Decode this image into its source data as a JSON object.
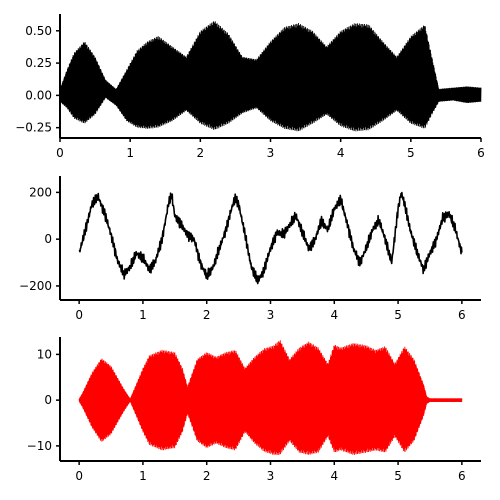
{
  "chart_data": [
    {
      "type": "line",
      "title": "",
      "xlabel": "",
      "ylabel": "",
      "xlim": [
        0,
        6
      ],
      "ylim": [
        -0.33,
        0.63
      ],
      "xticks": [
        0,
        1,
        2,
        3,
        4,
        5,
        6
      ],
      "yticks": [
        -0.25,
        0.0,
        0.25,
        0.5
      ],
      "ytick_labels": [
        "−0.25",
        "0.00",
        "0.25",
        "0.50"
      ],
      "grid": false,
      "color": "#000000",
      "series": [
        {
          "kind": "dense-oscillation-envelope",
          "x": [
            0.0,
            0.1,
            0.2,
            0.35,
            0.5,
            0.65,
            0.8,
            0.95,
            1.1,
            1.25,
            1.4,
            1.6,
            1.8,
            2.0,
            2.2,
            2.4,
            2.6,
            2.8,
            3.0,
            3.2,
            3.4,
            3.6,
            3.8,
            4.0,
            4.2,
            4.4,
            4.6,
            4.8,
            5.0,
            5.2,
            5.3,
            5.4,
            5.6,
            5.8,
            6.0
          ],
          "upper": [
            0.05,
            0.2,
            0.33,
            0.42,
            0.3,
            0.12,
            0.05,
            0.2,
            0.35,
            0.42,
            0.46,
            0.38,
            0.3,
            0.5,
            0.58,
            0.48,
            0.3,
            0.28,
            0.42,
            0.53,
            0.56,
            0.5,
            0.38,
            0.5,
            0.56,
            0.55,
            0.42,
            0.3,
            0.46,
            0.55,
            0.3,
            0.05,
            0.06,
            0.07,
            0.06
          ],
          "lower": [
            -0.05,
            -0.1,
            -0.18,
            -0.22,
            -0.15,
            -0.02,
            -0.08,
            -0.2,
            -0.25,
            -0.26,
            -0.25,
            -0.2,
            -0.12,
            -0.22,
            -0.27,
            -0.22,
            -0.14,
            -0.1,
            -0.2,
            -0.26,
            -0.28,
            -0.22,
            -0.15,
            -0.24,
            -0.28,
            -0.27,
            -0.2,
            -0.12,
            -0.22,
            -0.26,
            -0.15,
            -0.05,
            -0.04,
            -0.06,
            -0.05
          ]
        }
      ]
    },
    {
      "type": "line",
      "title": "",
      "xlabel": "",
      "ylabel": "",
      "xlim": [
        -0.3,
        6.3
      ],
      "ylim": [
        -260,
        270
      ],
      "xticks": [
        0,
        1,
        2,
        3,
        4,
        5,
        6
      ],
      "yticks": [
        -200,
        0,
        200
      ],
      "ytick_labels": [
        "−200",
        "0",
        "200"
      ],
      "grid": false,
      "color": "#000000",
      "series": [
        {
          "kind": "noisy-line",
          "x": [
            0.0,
            0.1,
            0.2,
            0.3,
            0.4,
            0.5,
            0.6,
            0.7,
            0.8,
            0.9,
            1.0,
            1.1,
            1.2,
            1.3,
            1.4,
            1.45,
            1.5,
            1.6,
            1.7,
            1.8,
            1.9,
            2.0,
            2.1,
            2.2,
            2.3,
            2.4,
            2.45,
            2.5,
            2.6,
            2.7,
            2.8,
            2.9,
            3.0,
            3.1,
            3.2,
            3.3,
            3.4,
            3.5,
            3.6,
            3.7,
            3.8,
            3.9,
            4.0,
            4.1,
            4.2,
            4.3,
            4.4,
            4.5,
            4.6,
            4.7,
            4.8,
            4.9,
            5.0,
            5.05,
            5.1,
            5.2,
            5.3,
            5.4,
            5.5,
            5.6,
            5.7,
            5.8,
            5.9,
            6.0
          ],
          "y": [
            -60,
            40,
            150,
            180,
            110,
            20,
            -90,
            -150,
            -120,
            -60,
            -80,
            -130,
            -90,
            0,
            150,
            190,
            100,
            60,
            20,
            0,
            -100,
            -160,
            -120,
            -40,
            40,
            140,
            180,
            150,
            20,
            -120,
            -180,
            -130,
            -40,
            30,
            20,
            60,
            100,
            30,
            -40,
            0,
            80,
            40,
            130,
            170,
            70,
            -40,
            -100,
            -40,
            40,
            80,
            0,
            -100,
            130,
            200,
            150,
            30,
            -60,
            -130,
            -60,
            0,
            90,
            110,
            40,
            -60
          ]
        }
      ]
    },
    {
      "type": "line",
      "title": "",
      "xlabel": "",
      "ylabel": "",
      "xlim": [
        -0.3,
        6.3
      ],
      "ylim": [
        -13.3,
        13.8
      ],
      "xticks": [
        0,
        1,
        2,
        3,
        4,
        5,
        6
      ],
      "yticks": [
        -10,
        0,
        10
      ],
      "ytick_labels": [
        "−10",
        "0",
        "10"
      ],
      "grid": false,
      "color": "#ff0000",
      "series": [
        {
          "kind": "dense-oscillation-envelope",
          "x": [
            0.0,
            0.05,
            0.2,
            0.35,
            0.5,
            0.7,
            0.8,
            1.0,
            1.1,
            1.3,
            1.5,
            1.62,
            1.7,
            1.85,
            2.0,
            2.15,
            2.3,
            2.45,
            2.6,
            2.75,
            2.9,
            3.05,
            3.15,
            3.3,
            3.45,
            3.6,
            3.75,
            3.9,
            4.0,
            4.1,
            4.3,
            4.5,
            4.65,
            4.8,
            4.95,
            5.1,
            5.25,
            5.4,
            5.45,
            5.5,
            6.0
          ],
          "upper": [
            0.3,
            1.5,
            6.0,
            9.2,
            7.5,
            2.5,
            0.3,
            7.0,
            9.8,
            11.0,
            10.5,
            7.0,
            3.0,
            9.0,
            10.5,
            9.5,
            10.5,
            11.0,
            7.0,
            9.5,
            11.3,
            12.0,
            13.2,
            9.0,
            11.5,
            12.8,
            11.5,
            8.0,
            12.2,
            11.5,
            12.5,
            12.0,
            11.0,
            11.8,
            8.0,
            11.8,
            9.0,
            3.5,
            0.8,
            0.4,
            0.4
          ],
          "lower": [
            -0.3,
            -1.5,
            -6.0,
            -9.2,
            -7.5,
            -2.5,
            -0.3,
            -7.0,
            -9.8,
            -11.0,
            -10.5,
            -7.0,
            -3.0,
            -9.0,
            -10.5,
            -9.5,
            -10.5,
            -11.0,
            -7.0,
            -9.5,
            -11.3,
            -12.0,
            -12.0,
            -9.0,
            -11.5,
            -12.0,
            -11.5,
            -8.0,
            -11.5,
            -11.0,
            -12.0,
            -11.5,
            -11.0,
            -11.5,
            -8.0,
            -11.5,
            -9.0,
            -3.5,
            -0.8,
            -0.4,
            -0.4
          ]
        }
      ]
    }
  ]
}
